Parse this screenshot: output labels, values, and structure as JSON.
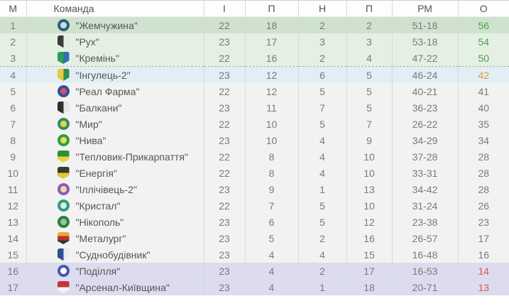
{
  "theme": {
    "zone_champion_bg": "#cfe2cf",
    "zone_promotion_bg": "#e4f0e3",
    "zone_playoff_bg": "#e1eef3",
    "zone_normal_bg": "#f2f2f2",
    "zone_relegation_bg": "#dcdcee",
    "points_green": "#4f9e4f",
    "points_orange": "#e8953d",
    "points_red": "#e25050",
    "text_gray": "#7a7a7a",
    "border_gray": "#d8d8d8"
  },
  "table": {
    "headers": [
      {
        "key": "place",
        "label": "М"
      },
      {
        "key": "team",
        "label": "Команда"
      },
      {
        "key": "games",
        "label": "І"
      },
      {
        "key": "wins",
        "label": "П"
      },
      {
        "key": "draws",
        "label": "Н"
      },
      {
        "key": "losses",
        "label": "П"
      },
      {
        "key": "goals",
        "label": "РМ"
      },
      {
        "key": "points",
        "label": "О"
      }
    ],
    "rows": [
      {
        "place": "1",
        "team": "\"Жемчужина\"",
        "games": "22",
        "wins": "18",
        "draws": "2",
        "losses": "2",
        "goals": "51-18",
        "points": "56",
        "zone": "champion",
        "points_color": "green",
        "separator_after": false,
        "icon": {
          "shape": "circle",
          "colors": [
            "#2b5f75",
            "#c9d9e0"
          ]
        }
      },
      {
        "place": "2",
        "team": "\"Рух\"",
        "games": "23",
        "wins": "17",
        "draws": "3",
        "losses": "3",
        "goals": "53-18",
        "points": "54",
        "zone": "promo",
        "points_color": "green",
        "separator_after": false,
        "icon": {
          "shape": "crest",
          "colors": [
            "#3a3a3a",
            "#e8e8e8"
          ]
        }
      },
      {
        "place": "3",
        "team": "\"Кремінь\"",
        "games": "22",
        "wins": "16",
        "draws": "2",
        "losses": "4",
        "goals": "47-22",
        "points": "50",
        "zone": "promo",
        "points_color": "green",
        "separator_after": true,
        "icon": {
          "shape": "crest",
          "colors": [
            "#2f9e55",
            "#2f6fb5"
          ]
        }
      },
      {
        "place": "4",
        "team": "\"Інгулець-2\"",
        "games": "23",
        "wins": "12",
        "draws": "6",
        "losses": "5",
        "goals": "46-24",
        "points": "42",
        "zone": "playoff",
        "points_color": "orange",
        "separator_after": false,
        "icon": {
          "shape": "crest",
          "colors": [
            "#e8c83e",
            "#2f8f4f"
          ]
        }
      },
      {
        "place": "5",
        "team": "\"Реал Фарма\"",
        "games": "22",
        "wins": "12",
        "draws": "5",
        "losses": "5",
        "goals": "40-21",
        "points": "41",
        "zone": "none",
        "points_color": "gray",
        "separator_after": false,
        "icon": {
          "shape": "circle",
          "colors": [
            "#2d4fae",
            "#d8524a"
          ]
        }
      },
      {
        "place": "6",
        "team": "\"Балкани\"",
        "games": "23",
        "wins": "11",
        "draws": "7",
        "losses": "5",
        "goals": "36-23",
        "points": "40",
        "zone": "none",
        "points_color": "gray",
        "separator_after": false,
        "icon": {
          "shape": "crest",
          "colors": [
            "#2e2e2e",
            "#e5e5e5"
          ]
        }
      },
      {
        "place": "7",
        "team": "\"Мир\"",
        "games": "22",
        "wins": "10",
        "draws": "5",
        "losses": "7",
        "goals": "26-22",
        "points": "35",
        "zone": "none",
        "points_color": "gray",
        "separator_after": false,
        "icon": {
          "shape": "circle",
          "colors": [
            "#2f8f62",
            "#e3d44e"
          ]
        }
      },
      {
        "place": "8",
        "team": "\"Нива\"",
        "games": "23",
        "wins": "10",
        "draws": "4",
        "losses": "9",
        "goals": "34-29",
        "points": "34",
        "zone": "none",
        "points_color": "gray",
        "separator_after": false,
        "icon": {
          "shape": "circle",
          "colors": [
            "#2f9e3f",
            "#e8df52"
          ]
        }
      },
      {
        "place": "9",
        "team": "\"Тепловик-Прикарпаття\"",
        "games": "22",
        "wins": "8",
        "draws": "4",
        "losses": "10",
        "goals": "37-28",
        "points": "28",
        "zone": "none",
        "points_color": "gray",
        "separator_after": false,
        "icon": {
          "shape": "shield",
          "colors": [
            "#2e8f3a",
            "#e8d43e"
          ]
        }
      },
      {
        "place": "10",
        "team": "\"Енергія\"",
        "games": "22",
        "wins": "8",
        "draws": "4",
        "losses": "10",
        "goals": "33-31",
        "points": "28",
        "zone": "none",
        "points_color": "gray",
        "separator_after": false,
        "icon": {
          "shape": "shield",
          "colors": [
            "#3a3a2e",
            "#e0c832"
          ]
        }
      },
      {
        "place": "11",
        "team": "\"Іллічівець-2\"",
        "games": "23",
        "wins": "9",
        "draws": "1",
        "losses": "13",
        "goals": "34-42",
        "points": "28",
        "zone": "none",
        "points_color": "gray",
        "separator_after": false,
        "icon": {
          "shape": "circle",
          "colors": [
            "#8a5cb8",
            "#ecd9a8"
          ]
        }
      },
      {
        "place": "12",
        "team": "\"Кристал\"",
        "games": "22",
        "wins": "7",
        "draws": "5",
        "losses": "10",
        "goals": "31-24",
        "points": "26",
        "zone": "none",
        "points_color": "gray",
        "separator_after": false,
        "icon": {
          "shape": "circle",
          "colors": [
            "#2e9a85",
            "#d9ebe2"
          ]
        }
      },
      {
        "place": "13",
        "team": "\"Нікополь\"",
        "games": "23",
        "wins": "6",
        "draws": "5",
        "losses": "12",
        "goals": "23-38",
        "points": "23",
        "zone": "none",
        "points_color": "gray",
        "separator_after": false,
        "icon": {
          "shape": "circle",
          "colors": [
            "#2f7f3a",
            "#8fc898"
          ]
        }
      },
      {
        "place": "14",
        "team": "\"Металург\"",
        "games": "23",
        "wins": "5",
        "draws": "2",
        "losses": "16",
        "goals": "26-57",
        "points": "17",
        "zone": "none",
        "points_color": "gray",
        "separator_after": false,
        "icon": {
          "shape": "shield",
          "colors": [
            "#e8a838",
            "#b3342c",
            "#333333"
          ]
        }
      },
      {
        "place": "15",
        "team": "\"Суднобудівник\"",
        "games": "23",
        "wins": "4",
        "draws": "4",
        "losses": "15",
        "goals": "16-48",
        "points": "16",
        "zone": "none",
        "points_color": "gray",
        "separator_after": false,
        "icon": {
          "shape": "crest",
          "colors": [
            "#2e4f8f",
            "#e8eaee"
          ]
        }
      },
      {
        "place": "16",
        "team": "\"Поділля\"",
        "games": "23",
        "wins": "4",
        "draws": "2",
        "losses": "17",
        "goals": "16-53",
        "points": "14",
        "zone": "releg",
        "points_color": "red",
        "separator_after": false,
        "icon": {
          "shape": "circle",
          "colors": [
            "#4a55b5",
            "#ffffff"
          ]
        }
      },
      {
        "place": "17",
        "team": "\"Арсенал-Київщина\"",
        "games": "23",
        "wins": "4",
        "draws": "1",
        "losses": "18",
        "goals": "20-71",
        "points": "13",
        "zone": "releg",
        "points_color": "red",
        "separator_after": false,
        "icon": {
          "shape": "shield",
          "colors": [
            "#c8333c",
            "#f2f2f2"
          ]
        }
      }
    ]
  }
}
